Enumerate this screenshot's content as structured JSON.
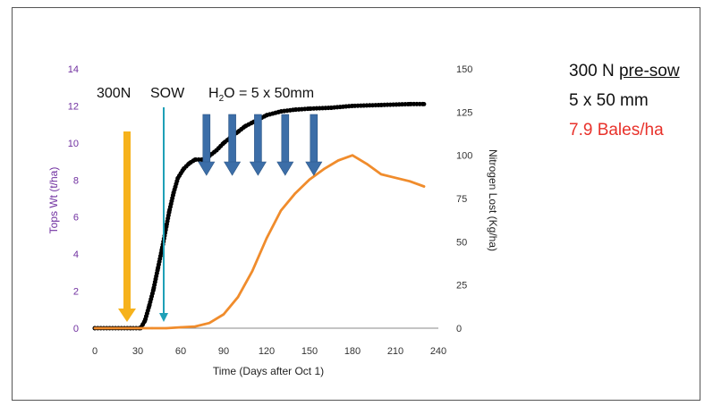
{
  "colors": {
    "tops_wt": "#000000",
    "nitrogen_lost": "#f08c2c",
    "arrow_300n": "#f6b21c",
    "arrow_sow": "#1fa0b7",
    "arrow_water": "#3c6ea8",
    "left_axis_label": "#7030a0",
    "bales": "#e8322b"
  },
  "side_text": {
    "line1_prefix": "300 N ",
    "line1_underlined": "pre-sow",
    "line2": "5 x 50 mm",
    "line3": "7.9 Bales/ha"
  },
  "annotations": {
    "n300": "300N",
    "sow": "SOW",
    "water_h": "H",
    "water_sub": "2",
    "water_rest": "O = 5 x 50mm",
    "water_arrow_days": [
      78,
      96,
      114,
      133,
      153
    ]
  },
  "chart_data": {
    "type": "line",
    "xlabel": "Time (Days after Oct 1)",
    "ylabel_left": "Tops Wt (t/ha)",
    "ylabel_right": "Nitrogen Lost (Kg/ha)",
    "xlim": [
      0,
      240
    ],
    "ylim_left": [
      0,
      14
    ],
    "ylim_right": [
      0,
      150
    ],
    "x_ticks": [
      0,
      30,
      60,
      90,
      120,
      150,
      180,
      210,
      240
    ],
    "y_ticks_left": [
      0,
      2,
      4,
      6,
      8,
      10,
      12,
      14
    ],
    "y_ticks_right": [
      0,
      25,
      50,
      75,
      100,
      125,
      150
    ],
    "series": [
      {
        "name": "Tops Wt",
        "axis": "left",
        "style": "dotted",
        "x": [
          0,
          25,
          32,
          35,
          38,
          41,
          44,
          47,
          50,
          52,
          55,
          58,
          62,
          66,
          70,
          75,
          80,
          85,
          90,
          95,
          100,
          105,
          110,
          115,
          120,
          130,
          140,
          150,
          165,
          180,
          200,
          220,
          230
        ],
        "y": [
          0,
          0,
          0,
          0.4,
          1.2,
          2.1,
          3.2,
          4.3,
          5.5,
          6.3,
          7.3,
          8.1,
          8.6,
          8.9,
          9.1,
          9.1,
          9.3,
          9.6,
          10.0,
          10.3,
          10.6,
          10.9,
          11.1,
          11.3,
          11.5,
          11.7,
          11.8,
          11.85,
          11.9,
          12.0,
          12.05,
          12.1,
          12.1
        ]
      },
      {
        "name": "Nitrogen Lost",
        "axis": "right",
        "style": "solid",
        "x": [
          0,
          30,
          40,
          50,
          60,
          70,
          80,
          90,
          100,
          110,
          120,
          130,
          140,
          150,
          160,
          170,
          180,
          190,
          200,
          210,
          220,
          230
        ],
        "y": [
          0,
          0,
          0,
          0,
          0.5,
          1,
          3,
          8,
          18,
          33,
          52,
          68,
          78,
          86,
          92,
          97,
          100,
          95,
          89,
          87,
          85,
          82
        ]
      }
    ]
  }
}
